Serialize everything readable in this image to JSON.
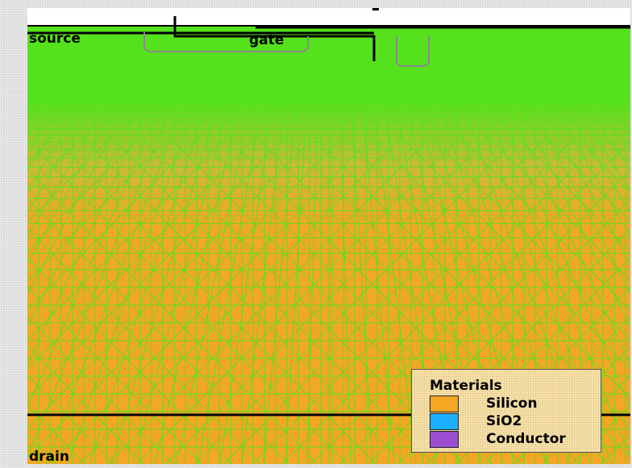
{
  "labels": {
    "source": "source",
    "gate": "gate",
    "drain": "drain"
  },
  "legend": {
    "title": "Materials",
    "items": [
      {
        "label": "Silicon",
        "color": "#f5a623"
      },
      {
        "label": "SiO2",
        "color": "#1ab0ff"
      },
      {
        "label": "Conductor",
        "color": "#9a4fd0"
      }
    ]
  },
  "colors": {
    "mesh_lines": "#55e21c",
    "silicon": "#f5a623",
    "top_region": "#55e21c",
    "background": "#d9d9d9"
  }
}
